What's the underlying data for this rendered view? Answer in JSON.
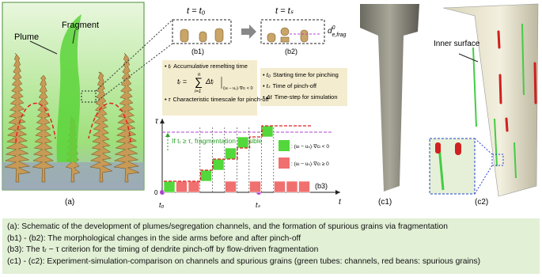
{
  "panel_a": {
    "plume": "Plume",
    "fragment": "Fragment",
    "tag": "(a)"
  },
  "panel_b": {
    "b1_time": "t = t₀",
    "b2_time": "t = tₛ",
    "b1_tag": "(b1)",
    "b2_tag": "(b2)",
    "d_label": {
      "base": "d",
      "sup": "0",
      "sub": "e,frag"
    },
    "defs_left": [
      {
        "sym": "tᵣ",
        "desc": "Accumulative remelting time"
      },
      {
        "sym": "τ",
        "desc": "Characteristic timescale for pinch-off"
      }
    ],
    "formula": {
      "lhs": "tᵣ =",
      "sum": "∑",
      "top": "n",
      "bottom": "i=1",
      "term": "Δtᵢ",
      "cond": "(uₗ − uₛ)·∇cₗ < 0"
    },
    "defs_right": [
      {
        "sym": "t₀",
        "desc": "Starting time for pinching"
      },
      {
        "sym": "tₛ",
        "desc": "Time of pinch-off"
      },
      {
        "sym": "Δt",
        "desc": "Time-step for simulation"
      }
    ],
    "criterion": "If tᵣ ≥ τ, fragmentation possible",
    "y_axis": "τ",
    "x_axis": "t",
    "origin": "0",
    "t0": "t₀",
    "ts": "tₛ",
    "tag": "(b3)",
    "legend": [
      ": (uₗ − uₛ)·∇cₗ < 0",
      ": (uₗ − uₛ)·∇cₗ ≥ 0"
    ]
  },
  "panel_c": {
    "c1_tag": "(c1)",
    "c2_tag": "(c2)",
    "inner_surface": "Inner surface"
  },
  "caption": [
    "(a): Schematic of the development of plumes/segregation channels, and the formation of spurious grains via fragmentation",
    "(b1) - (b2): The morphological changes in the side arms before and after pinch-off",
    "(b3): The tᵣ − τ criterion for the timing of dendrite pinch-off by flow-driven fragmentation",
    "(c1) - (c2): Experiment-simulation-comparison on channels and spurious grains (green tubes: channels, red beans: spurious grains)"
  ]
}
